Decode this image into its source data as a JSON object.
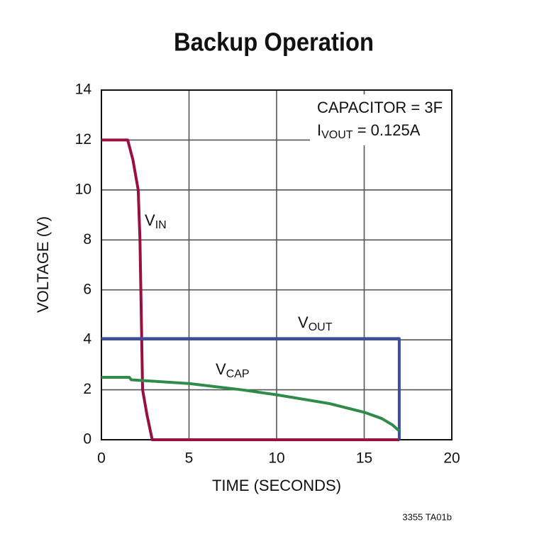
{
  "chart_data": {
    "type": "line",
    "title": "Backup Operation",
    "x_label": "TIME (SECONDS)",
    "y_label": "VOLTAGE (V)",
    "xlim": [
      0,
      20
    ],
    "ylim": [
      0,
      14
    ],
    "xticks": [
      0,
      5,
      10,
      15,
      20
    ],
    "yticks": [
      0,
      2,
      4,
      6,
      8,
      10,
      12,
      14
    ],
    "grid": true,
    "annotations": [
      [
        "CAPACITOR = 3F"
      ],
      [
        "I",
        "VOUT",
        " = 0.125A"
      ]
    ],
    "footnote": "3355 TA01b",
    "series": [
      {
        "name": [
          "V",
          "IN"
        ],
        "color": "#9b0f3c",
        "x": [
          0,
          1.5,
          1.8,
          2.1,
          2.2,
          2.3,
          2.35,
          2.6,
          2.9,
          17
        ],
        "values": [
          12,
          12,
          11.2,
          10,
          8,
          4,
          2,
          1,
          0,
          0
        ]
      },
      {
        "name": [
          "V",
          "OUT"
        ],
        "color": "#3a4ea2",
        "x": [
          0,
          17,
          17
        ],
        "values": [
          4.05,
          4.05,
          0
        ]
      },
      {
        "name": [
          "V",
          "CAP"
        ],
        "color": "#2e8b4a",
        "x": [
          0,
          1.6,
          1.7,
          5,
          8,
          10,
          13,
          15,
          16,
          16.6,
          17
        ],
        "values": [
          2.5,
          2.5,
          2.4,
          2.25,
          2.0,
          1.8,
          1.45,
          1.1,
          0.85,
          0.6,
          0.35
        ]
      }
    ]
  }
}
